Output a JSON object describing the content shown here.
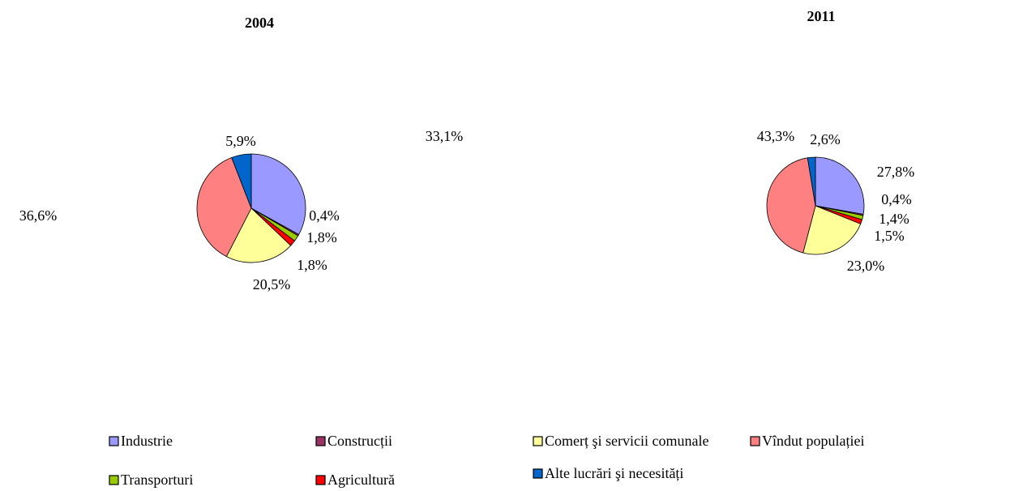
{
  "chart_data": [
    {
      "type": "pie",
      "title": "2004",
      "categories": [
        "Industrie",
        "Construcții",
        "Transporturi",
        "Agricultură",
        "Comerț şi servicii comunale",
        "Vîndut populației",
        "Alte lucrări şi necesități"
      ],
      "values": [
        33.1,
        0.4,
        1.8,
        1.8,
        20.5,
        36.6,
        5.9
      ],
      "value_labels": [
        "33,1%",
        "0,4%",
        "1,8%",
        "1,8%",
        "20,5%",
        "36,6%",
        "5,9%"
      ],
      "colors": [
        "#9999ff",
        "#993366",
        "#99cc00",
        "#ff0000",
        "#ffff99",
        "#ff8080",
        "#0066cc"
      ]
    },
    {
      "type": "pie",
      "title": "2011",
      "categories": [
        "Industrie",
        "Construcții",
        "Transporturi",
        "Agricultură",
        "Comerț şi servicii comunale",
        "Vîndut populației",
        "Alte lucrări şi necesități"
      ],
      "values": [
        27.8,
        0.4,
        1.4,
        1.5,
        23.0,
        43.3,
        2.6
      ],
      "value_labels": [
        "27,8%",
        "0,4%",
        "1,4%",
        "1,5%",
        "23,0%",
        "43,3%",
        "2,6%"
      ],
      "colors": [
        "#9999ff",
        "#993366",
        "#99cc00",
        "#ff0000",
        "#ffff99",
        "#ff8080",
        "#0066cc"
      ]
    }
  ]
}
